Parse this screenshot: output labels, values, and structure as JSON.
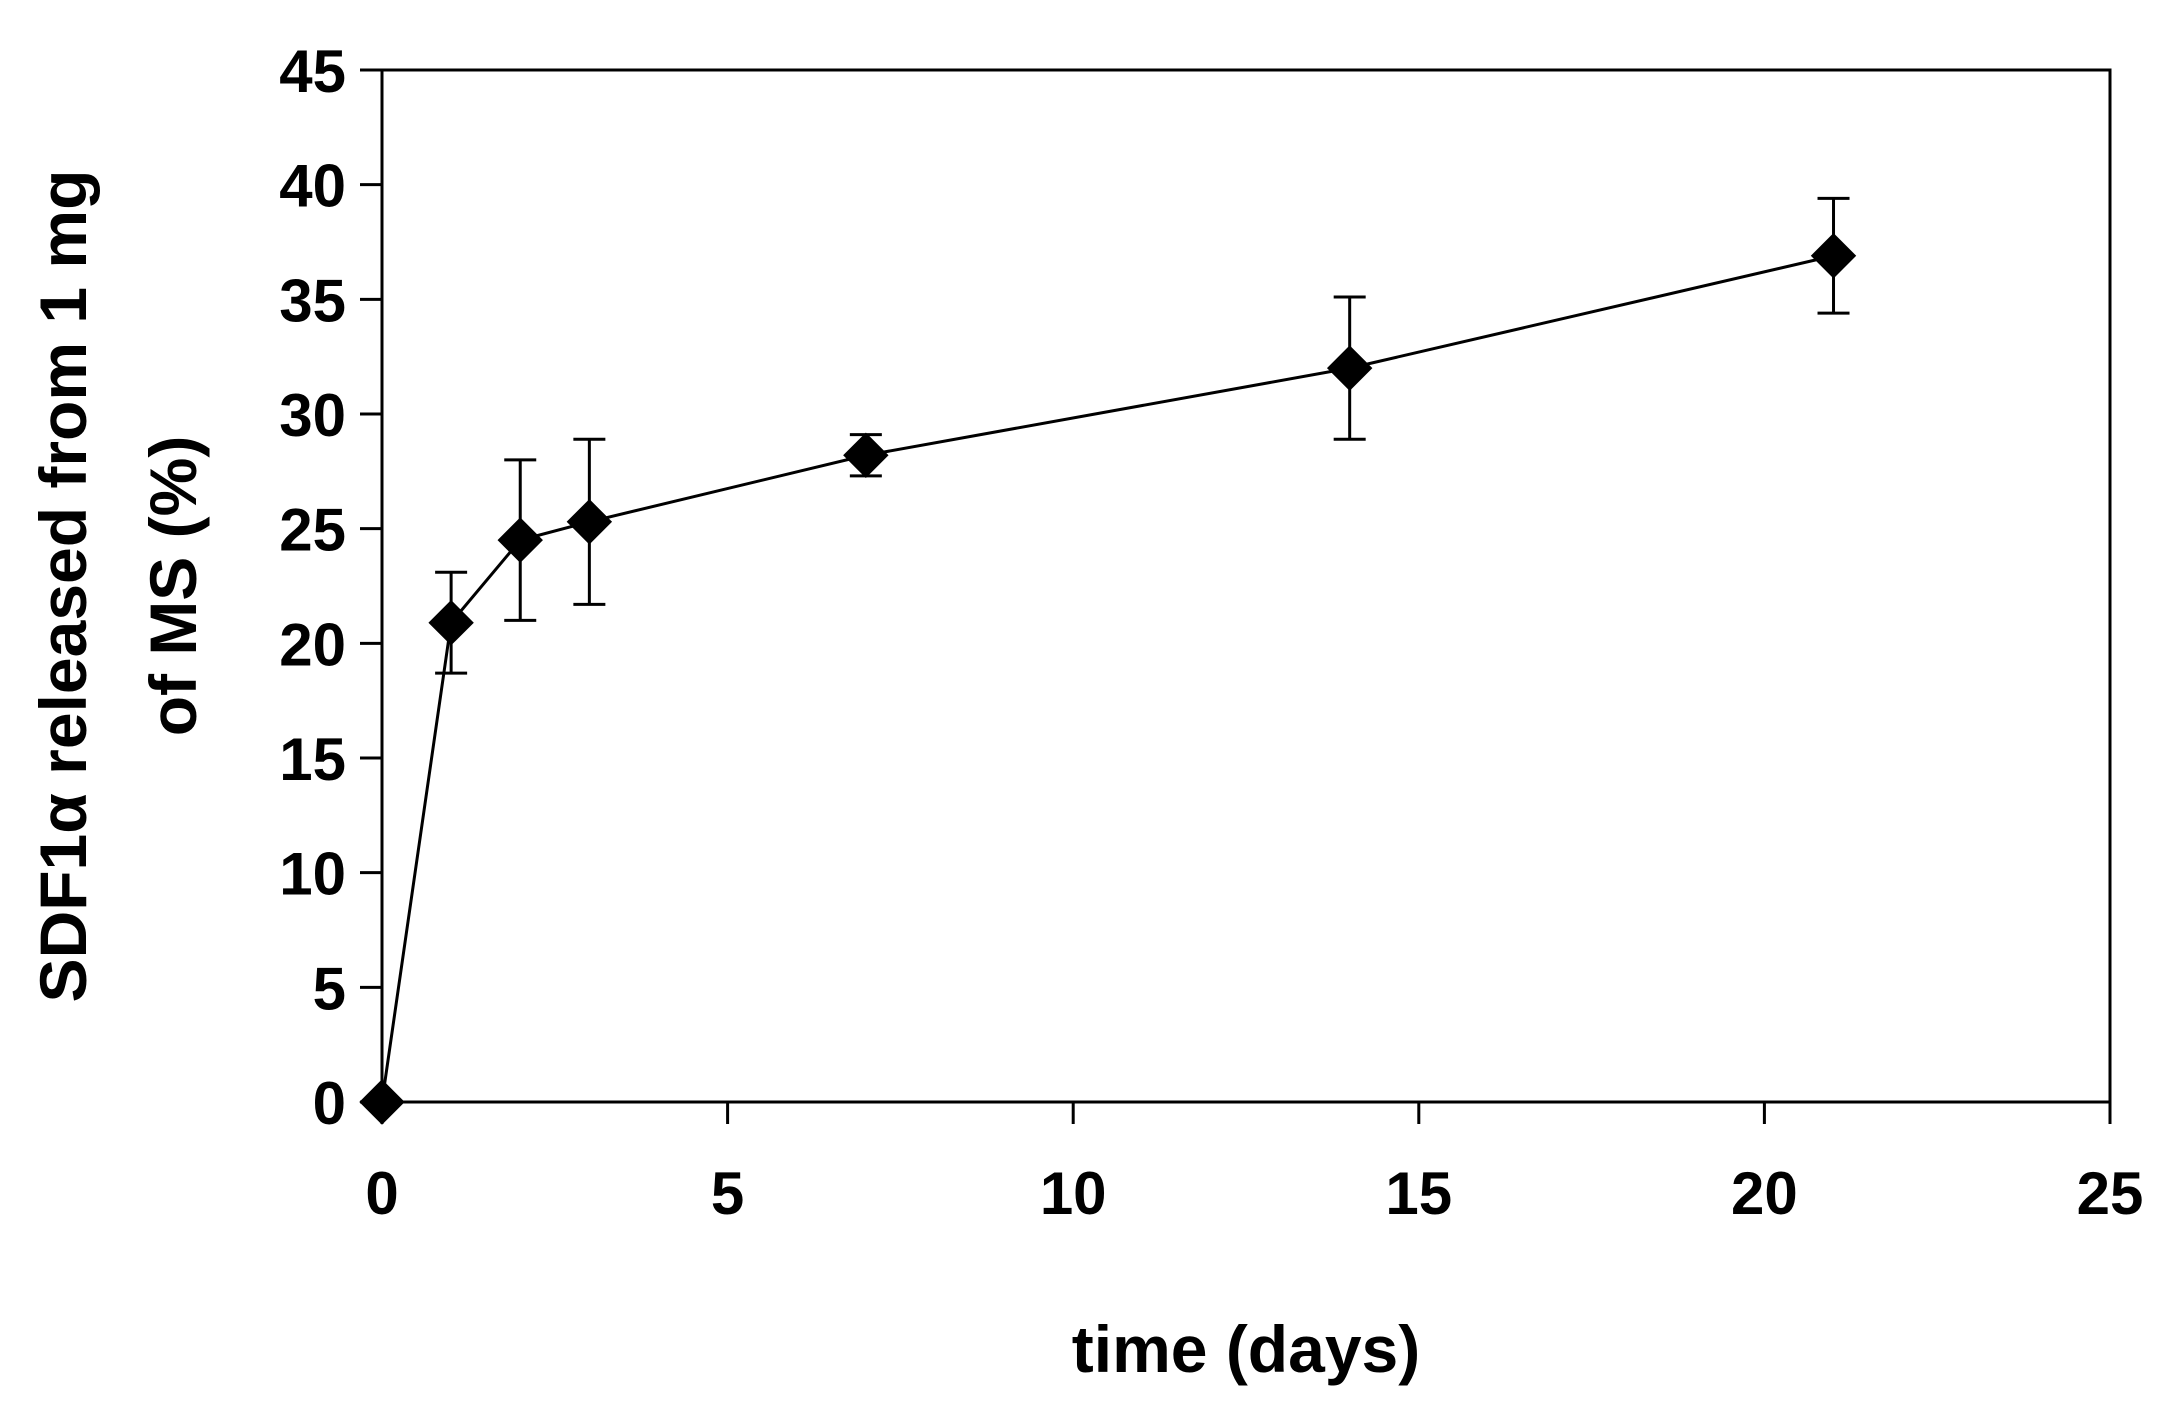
{
  "chart_data": {
    "type": "line",
    "title": "",
    "xlabel": "time (days)",
    "ylabel_line1": "SDF1α released from 1 mg",
    "ylabel_line2": "of MS (%)",
    "xlim": [
      0,
      25
    ],
    "ylim": [
      0,
      45
    ],
    "xticks": [
      0,
      5,
      10,
      15,
      20,
      25
    ],
    "yticks": [
      0,
      5,
      10,
      15,
      20,
      25,
      30,
      35,
      40,
      45
    ],
    "grid": false,
    "legend": "none",
    "series": [
      {
        "name": "SDF1α release",
        "marker": "diamond",
        "color": "#000000",
        "x": [
          0,
          1,
          2,
          3,
          7,
          14,
          21
        ],
        "y": [
          0,
          20.9,
          24.5,
          25.3,
          28.2,
          32.0,
          36.9
        ],
        "error": [
          0,
          2.2,
          3.5,
          3.6,
          0.9,
          3.1,
          2.5
        ]
      }
    ]
  }
}
